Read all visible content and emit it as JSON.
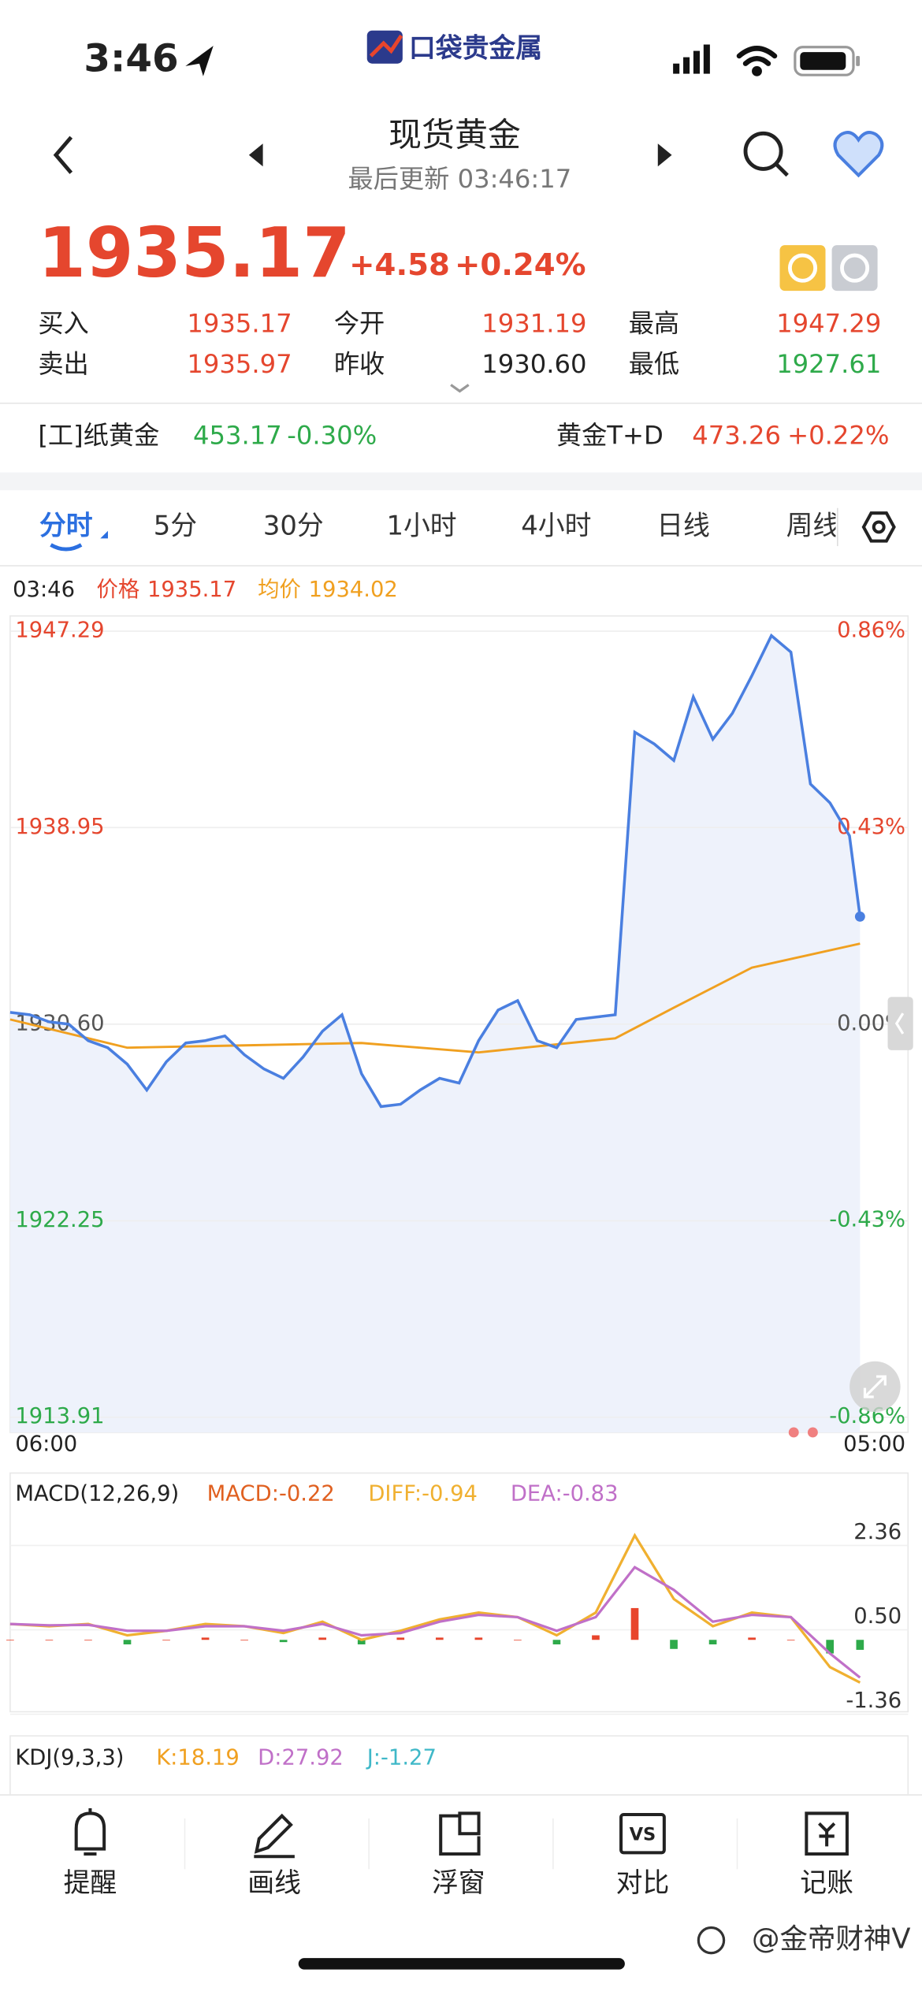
{
  "status": {
    "time": "3:46",
    "logo": "口袋贵金属"
  },
  "header": {
    "title": "现货黄金",
    "subtitle": "最后更新 03:46:17"
  },
  "quote": {
    "price": "1935.17",
    "change": "+4.58",
    "change_pct": "+0.24%"
  },
  "stats": [
    [
      "买入",
      "1935.17",
      "今开",
      "1931.19",
      "最高",
      "1947.29"
    ],
    [
      "卖出",
      "1935.97",
      "昨收",
      "1930.60",
      "最低",
      "1927.61"
    ]
  ],
  "related": [
    {
      "name": "[工]纸黄金",
      "value": "453.17",
      "pct": "-0.30%"
    },
    {
      "name": "黄金T+D",
      "value": "473.26",
      "pct": "+0.22%"
    }
  ],
  "tabs": [
    "分时",
    "5分",
    "30分",
    "1小时",
    "4小时",
    "日线",
    "周线"
  ],
  "chart_data": [
    {
      "type": "line",
      "legend": {
        "time": "03:46",
        "values": [
          "1935.17",
          "1934.02"
        ]
      },
      "xlim": [
        0,
        23
      ],
      "xticks": [
        {
          "value": 0,
          "label": "06:00"
        },
        {
          "value": 23,
          "label": "05:00"
        }
      ],
      "ylim": [
        1913.91,
        1947.29
      ],
      "yticks": [
        {
          "value": 1947.29,
          "label": "1947.29"
        },
        {
          "value": 1938.95,
          "label": "1938.95"
        },
        {
          "value": 1930.6,
          "label": "1930.60"
        },
        {
          "value": 1922.25,
          "label": "1922.25"
        },
        {
          "value": 1913.91,
          "label": "1913.91"
        }
      ],
      "y2lim": [
        -0.86,
        0.86
      ],
      "y2ticks": [
        {
          "value": 0.86,
          "label": "0.86%"
        },
        {
          "value": 0.43,
          "label": "0.43%"
        },
        {
          "value": 0,
          "label": "0.00%"
        },
        {
          "value": -0.43,
          "label": "-0.43%"
        },
        {
          "value": -0.86,
          "label": "-0.86%"
        }
      ],
      "grid": true,
      "series": [
        {
          "name": "价格",
          "color": "#4a7fe0",
          "x": [
            0,
            0.5,
            1,
            1.5,
            2,
            2.5,
            3,
            3.5,
            4,
            4.5,
            5,
            5.5,
            6,
            6.5,
            7,
            7.5,
            8,
            8.5,
            9,
            9.5,
            10,
            10.5,
            11,
            11.5,
            12,
            12.5,
            13,
            13.5,
            14,
            14.5,
            15,
            15.5,
            16,
            16.5,
            17,
            17.5,
            18,
            18.5,
            19,
            19.5,
            20,
            20.5,
            21,
            21.5,
            21.77
          ],
          "values": [
            1931.1,
            1931.0,
            1930.7,
            1930.6,
            1929.9,
            1929.6,
            1928.9,
            1927.8,
            1929.0,
            1929.8,
            1929.9,
            1930.1,
            1929.3,
            1928.7,
            1928.3,
            1929.2,
            1930.3,
            1931.0,
            1928.5,
            1927.1,
            1927.2,
            1927.8,
            1928.3,
            1928.1,
            1929.9,
            1931.2,
            1931.6,
            1929.9,
            1929.6,
            1930.8,
            1930.9,
            1931.0,
            1943.0,
            1942.5,
            1941.8,
            1944.5,
            1942.7,
            1943.8,
            1945.4,
            1947.1,
            1946.4,
            1940.8,
            1940.0,
            1938.6,
            1935.17
          ]
        },
        {
          "name": "均价",
          "color": "#f0a020",
          "x": [
            0,
            3,
            6,
            9,
            12,
            15.5,
            17,
            19,
            21.77
          ],
          "values": [
            1930.8,
            1929.6,
            1929.7,
            1929.8,
            1929.4,
            1930.0,
            1931.3,
            1933.0,
            1934.02
          ]
        }
      ]
    },
    {
      "type": "line",
      "title": "MACD(12,26,9)",
      "xlim": [
        0,
        23
      ],
      "x": [
        0,
        1,
        2,
        3,
        4,
        5,
        6,
        7,
        8,
        9,
        10,
        11,
        12,
        13,
        14,
        15,
        16,
        17,
        18,
        19,
        20,
        21,
        21.77
      ],
      "ylim": [
        -1.36,
        2.36
      ],
      "yticks": [
        2.36,
        {
          "value": 0.5,
          "label": "0.50"
        },
        -1.36
      ],
      "histogram": {
        "label": "MACD:-0.22",
        "color": "#e8452c",
        "negative_color": "#2eaa4a",
        "values": [
          0,
          0,
          0,
          -0.1,
          0,
          0.05,
          0,
          -0.05,
          0.05,
          -0.1,
          0.05,
          0.05,
          0.05,
          0,
          -0.1,
          0.1,
          0.7,
          -0.2,
          -0.1,
          0.05,
          0,
          -0.3,
          -0.22
        ]
      },
      "series": [
        {
          "label": "DIFF:-0.94",
          "color": "#f0b030",
          "values": [
            0.35,
            0.3,
            0.35,
            0.1,
            0.2,
            0.35,
            0.3,
            0.15,
            0.4,
            0.0,
            0.2,
            0.45,
            0.6,
            0.5,
            0.1,
            0.6,
            2.3,
            0.9,
            0.3,
            0.6,
            0.5,
            -0.6,
            -0.94
          ]
        },
        {
          "label": "DEA:-0.83",
          "color": "#c070c8",
          "values": [
            0.35,
            0.32,
            0.33,
            0.2,
            0.2,
            0.3,
            0.3,
            0.2,
            0.35,
            0.1,
            0.15,
            0.4,
            0.55,
            0.5,
            0.2,
            0.5,
            1.6,
            1.1,
            0.4,
            0.55,
            0.5,
            -0.3,
            -0.83
          ]
        }
      ]
    }
  ],
  "kdj": {
    "title": "KDJ(9,3,3)",
    "indicators": [
      "K:18.19",
      "D:27.92",
      "J:-1.27"
    ]
  },
  "nav": [
    "提醒",
    "画线",
    "浮窗",
    "对比",
    "记账"
  ],
  "watermark": "@金帝财神V"
}
